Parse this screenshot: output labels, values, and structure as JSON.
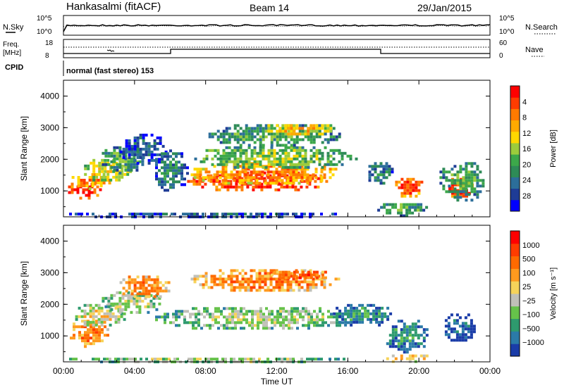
{
  "header": {
    "site": "Hankasalmi (fitACF)",
    "beam": "Beam 14",
    "date": "29/Jan/2015"
  },
  "noise_panel": {
    "left_label": "N.Sky",
    "right_label": "N.Search",
    "ticks": [
      "10^5",
      "10^0"
    ]
  },
  "freq_panel": {
    "left_label_1": "Freq.",
    "left_label_2": "[MHz]",
    "left_ticks": [
      "18",
      "8"
    ],
    "right_label": "Nave",
    "right_ticks": [
      "60",
      "0"
    ]
  },
  "cpid": {
    "label": "CPID",
    "text": "normal (fast stereo) 153"
  },
  "chart_data": [
    {
      "type": "heatmap",
      "name": "power",
      "ylabel": "Slant Range [km]",
      "xlabel": "Time UT",
      "x_ticks": [
        "00:00",
        "04:00",
        "08:00",
        "12:00",
        "16:00",
        "20:00",
        "00:00"
      ],
      "x_range_hours": [
        0,
        24
      ],
      "y_ticks": [
        1000,
        2000,
        3000,
        4000
      ],
      "ylim": [
        180,
        4500
      ],
      "colorbar": {
        "label": "Power [dB]",
        "ticks": [
          "4",
          "8",
          "12",
          "16",
          "20",
          "24",
          "28"
        ],
        "colors": [
          "#0000ff",
          "#1e3c96",
          "#2c6e9a",
          "#2e8b57",
          "#3ca84a",
          "#9ccc3c",
          "#ffd800",
          "#ffaa00",
          "#ff7a00",
          "#ff3c00",
          "#ff0000"
        ]
      },
      "regions": [
        {
          "t0": 0.1,
          "t1": 2.2,
          "r0": 800,
          "r1": 1350,
          "level": 10
        },
        {
          "t0": 0.3,
          "t1": 2.6,
          "r0": 1100,
          "r1": 1650,
          "level": 8
        },
        {
          "t0": 1.0,
          "t1": 3.8,
          "r0": 1300,
          "r1": 2100,
          "level": 6
        },
        {
          "t0": 2.0,
          "t1": 4.6,
          "r0": 1600,
          "r1": 2500,
          "level": 4
        },
        {
          "t0": 3.0,
          "t1": 5.8,
          "r0": 1900,
          "r1": 2900,
          "level": 2
        },
        {
          "t0": 5.0,
          "t1": 7.0,
          "r0": 1000,
          "r1": 2400,
          "level": 3
        },
        {
          "t0": 6.8,
          "t1": 15.0,
          "r0": 1000,
          "r1": 1700,
          "level": 10
        },
        {
          "t0": 7.0,
          "t1": 15.5,
          "r0": 1200,
          "r1": 2000,
          "level": 8
        },
        {
          "t0": 7.2,
          "t1": 16.5,
          "r0": 1700,
          "r1": 2500,
          "level": 5
        },
        {
          "t0": 8.0,
          "t1": 15.8,
          "r0": 2400,
          "r1": 3200,
          "level": 4
        },
        {
          "t0": 11.0,
          "t1": 15.5,
          "r0": 2800,
          "r1": 3200,
          "level": 7
        },
        {
          "t0": 17.0,
          "t1": 18.5,
          "r0": 1200,
          "r1": 2000,
          "level": 3
        },
        {
          "t0": 18.5,
          "t1": 20.2,
          "r0": 800,
          "r1": 1500,
          "level": 9
        },
        {
          "t0": 17.5,
          "t1": 20.5,
          "r0": 250,
          "r1": 700,
          "level": 4
        },
        {
          "t0": 21.5,
          "t1": 23.0,
          "r0": 800,
          "r1": 1500,
          "level": 10
        },
        {
          "t0": 21.0,
          "t1": 23.8,
          "r0": 700,
          "r1": 2000,
          "level": 4
        },
        {
          "t0": 0.0,
          "t1": 16.0,
          "r0": 180,
          "r1": 400,
          "level": 2
        }
      ]
    },
    {
      "type": "heatmap",
      "name": "velocity",
      "ylabel": "Slant Range [km]",
      "xlabel": "Time UT",
      "x_ticks": [
        "00:00",
        "04:00",
        "08:00",
        "12:00",
        "16:00",
        "20:00",
        "00:00"
      ],
      "x_range_hours": [
        0,
        24
      ],
      "y_ticks": [
        1000,
        2000,
        3000,
        4000
      ],
      "ylim": [
        180,
        4500
      ],
      "colorbar": {
        "label": "Velocity [m s⁻¹]",
        "ticks": [
          "1000",
          "500",
          "100",
          "25",
          "−25",
          "−100",
          "−500",
          "−1000"
        ],
        "colors": [
          "#1a3ca8",
          "#2b7aa8",
          "#2e9a6e",
          "#66c24a",
          "#c0c0b8",
          "#f6d35a",
          "#ff9a1e",
          "#ff6a00",
          "#ff3c00",
          "#ff0000"
        ]
      },
      "regions": [
        {
          "t0": 0.2,
          "t1": 2.5,
          "r0": 700,
          "r1": 1600,
          "level": 7
        },
        {
          "t0": 0.5,
          "t1": 3.5,
          "r0": 1300,
          "r1": 2100,
          "level": 5
        },
        {
          "t0": 2.0,
          "t1": 5.5,
          "r0": 1700,
          "r1": 2500,
          "level": 4
        },
        {
          "t0": 3.0,
          "t1": 6.0,
          "r0": 2200,
          "r1": 3000,
          "level": 7
        },
        {
          "t0": 5.0,
          "t1": 16.5,
          "r0": 1200,
          "r1": 2000,
          "level": 4
        },
        {
          "t0": 7.0,
          "t1": 15.5,
          "r0": 2400,
          "r1": 3200,
          "level": 7
        },
        {
          "t0": 11.5,
          "t1": 15.0,
          "r0": 2800,
          "r1": 3150,
          "level": 8
        },
        {
          "t0": 15.0,
          "t1": 18.5,
          "r0": 1300,
          "r1": 2100,
          "level": 2
        },
        {
          "t0": 18.0,
          "t1": 20.5,
          "r0": 500,
          "r1": 1600,
          "level": 2
        },
        {
          "t0": 18.0,
          "t1": 20.5,
          "r0": 200,
          "r1": 500,
          "level": 6
        },
        {
          "t0": 21.3,
          "t1": 23.2,
          "r0": 800,
          "r1": 1800,
          "level": 1
        },
        {
          "t0": 0.0,
          "t1": 16.0,
          "r0": 180,
          "r1": 400,
          "level": 4
        }
      ]
    }
  ]
}
